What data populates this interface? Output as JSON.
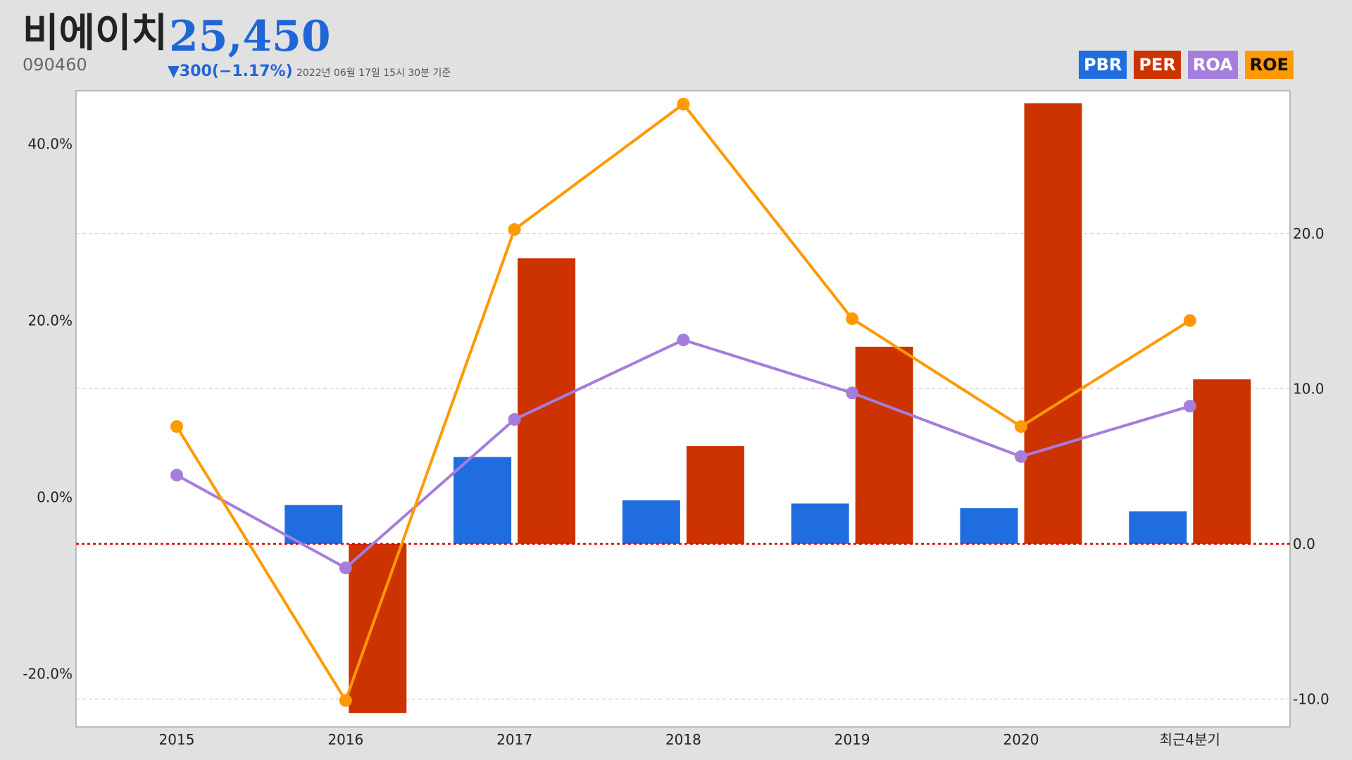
{
  "header": {
    "company": "비에이치",
    "code": "090460",
    "price": "25,450",
    "change": "▼300(−1.17%)",
    "as_of": "2022년 06월 17일 15시 30분 기준"
  },
  "legend": [
    {
      "label": "PBR",
      "color": "#1f6ddf",
      "text_color": "#ffffff"
    },
    {
      "label": "PER",
      "color": "#cc3300",
      "text_color": "#ffffff"
    },
    {
      "label": "ROA",
      "color": "#a57ddc",
      "text_color": "#ffffff"
    },
    {
      "label": "ROE",
      "color": "#ff9900",
      "text_color": "#111111"
    }
  ],
  "chart_data": {
    "type": "bar",
    "categories": [
      "2015",
      "2016",
      "2017",
      "2018",
      "2019",
      "2020",
      "최근4분기"
    ],
    "series": [
      {
        "name": "PBR",
        "kind": "bar",
        "axis": "right",
        "color": "#1f6ddf",
        "values": [
          null,
          2.5,
          5.6,
          2.8,
          2.6,
          2.3,
          2.1
        ]
      },
      {
        "name": "PER",
        "kind": "bar",
        "axis": "right",
        "color": "#cc3300",
        "values": [
          null,
          -10.9,
          18.4,
          6.3,
          12.7,
          28.4,
          10.6
        ]
      },
      {
        "name": "ROA",
        "kind": "line",
        "axis": "left",
        "color": "#a57ddc",
        "values": [
          2.5,
          -8.0,
          8.8,
          17.8,
          11.8,
          4.6,
          10.3
        ]
      },
      {
        "name": "ROE",
        "kind": "line",
        "axis": "left",
        "color": "#ff9900",
        "values": [
          8.0,
          -23.0,
          30.3,
          44.5,
          20.2,
          8.0,
          20.0
        ]
      }
    ],
    "left_axis": {
      "ticks": [
        "40.0%",
        "20.0%",
        "0.0%",
        "-20.0%"
      ],
      "tick_values": [
        40,
        20,
        0,
        -20
      ],
      "range": [
        -26.0,
        46.0
      ]
    },
    "right_axis": {
      "ticks": [
        "20.0",
        "10.0",
        "0.0",
        "-10.0"
      ],
      "tick_values": [
        20,
        10,
        0,
        -10
      ],
      "range": [
        -11.8,
        29.2
      ]
    },
    "reference_line": {
      "axis": "right",
      "value": 0,
      "color": "#e00000",
      "style": "dotted"
    },
    "grid": {
      "horizontal": true,
      "style": "dashed"
    }
  }
}
